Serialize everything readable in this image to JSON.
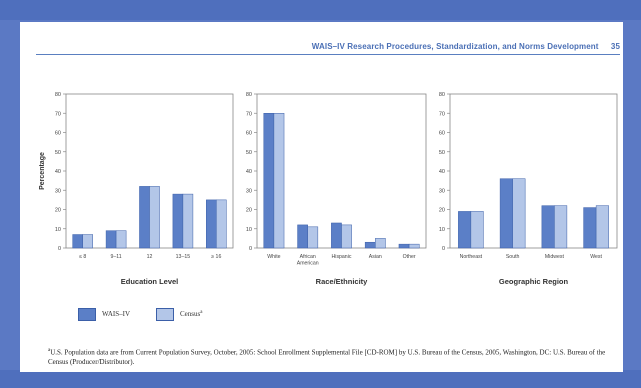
{
  "header": {
    "title": "WAIS–IV Research Procedures, Standardization, and Norms Development",
    "page_number": "35"
  },
  "legend": {
    "series1": "WAIS–IV",
    "series2": "Census",
    "series2_mark": "a"
  },
  "footnote": {
    "mark": "a",
    "text": "U.S. Population data are from Current Population Survey, October, 2005: School Enrollment Supplemental File [CD-ROM] by U.S. Bureau of the Census, 2005, Washington, DC: U.S. Bureau of the Census (Producer/Distributor)."
  },
  "colors": {
    "wais": "#5b7fc7",
    "census": "#b3c6e8",
    "axis": "#888888",
    "header": "#4a6fb5"
  },
  "chart_data": [
    {
      "type": "bar",
      "ylabel": "Percentage",
      "xlabel": "Education Level",
      "ylim": [
        0,
        80
      ],
      "yticks": [
        0,
        10,
        20,
        30,
        40,
        50,
        60,
        70,
        80
      ],
      "categories": [
        "≤ 8",
        "9–11",
        "12",
        "13–15",
        "≥ 16"
      ],
      "series": [
        {
          "name": "WAIS–IV",
          "values": [
            7,
            9,
            32,
            28,
            25
          ]
        },
        {
          "name": "Census",
          "values": [
            7,
            9,
            32,
            28,
            25
          ]
        }
      ]
    },
    {
      "type": "bar",
      "ylabel": "",
      "xlabel": "Race/Ethnicity",
      "ylim": [
        0,
        80
      ],
      "yticks": [
        0,
        10,
        20,
        30,
        40,
        50,
        60,
        70,
        80
      ],
      "categories": [
        "White",
        "African American",
        "Hispanic",
        "Asian",
        "Other"
      ],
      "series": [
        {
          "name": "WAIS–IV",
          "values": [
            70,
            12,
            13,
            3,
            2
          ]
        },
        {
          "name": "Census",
          "values": [
            70,
            11,
            12,
            5,
            2
          ]
        }
      ]
    },
    {
      "type": "bar",
      "ylabel": "",
      "xlabel": "Geographic Region",
      "ylim": [
        0,
        80
      ],
      "yticks": [
        0,
        10,
        20,
        30,
        40,
        50,
        60,
        70,
        80
      ],
      "categories": [
        "Northeast",
        "South",
        "Midwest",
        "West"
      ],
      "series": [
        {
          "name": "WAIS–IV",
          "values": [
            19,
            36,
            22,
            21
          ]
        },
        {
          "name": "Census",
          "values": [
            19,
            36,
            22,
            22
          ]
        }
      ]
    }
  ]
}
